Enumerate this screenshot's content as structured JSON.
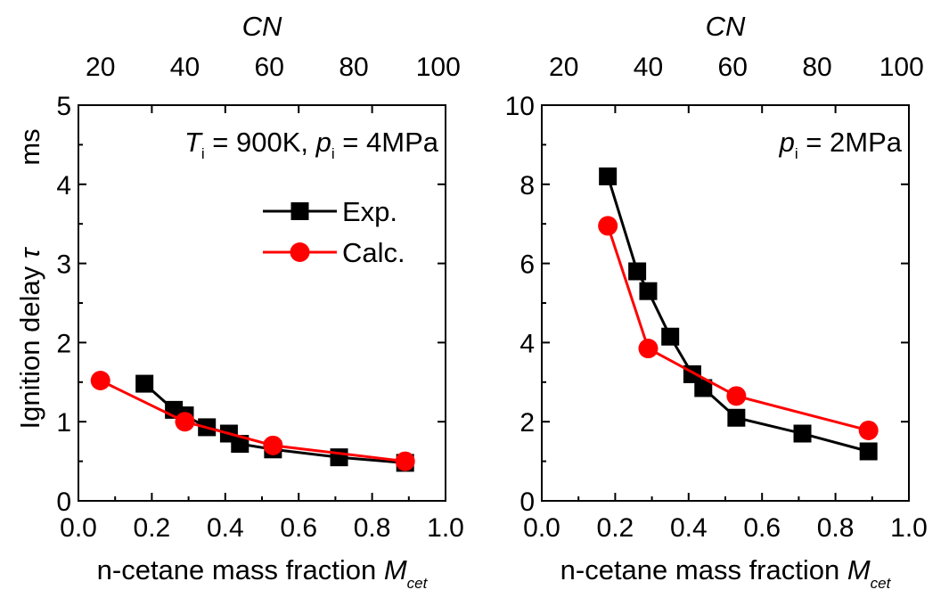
{
  "chart_data": [
    {
      "type": "line",
      "ylabel": "Ignition delay τ",
      "yunit": "ms",
      "xlabel": "n-cetane mass fraction M",
      "xlabel_sub": "cet",
      "top_axis_label": "CN",
      "xlim": [
        0.0,
        1.0
      ],
      "ylim": [
        0,
        5
      ],
      "x_ticks": [
        "0.0",
        "0.2",
        "0.4",
        "0.6",
        "0.8",
        "1.0"
      ],
      "y_ticks": [
        "0",
        "1",
        "2",
        "3",
        "4",
        "5"
      ],
      "top_ticks": [
        {
          "label": "20",
          "x": 0.06
        },
        {
          "label": "40",
          "x": 0.29
        },
        {
          "label": "60",
          "x": 0.52
        },
        {
          "label": "80",
          "x": 0.75
        },
        {
          "label": "100",
          "x": 0.98
        }
      ],
      "annotation": {
        "T": "T",
        "T_sub": "i",
        "T_text": " = 900K, ",
        "p": "p",
        "p_sub": "i",
        "p_text": " = 4MPa"
      },
      "legend": {
        "placement": "upper-right"
      },
      "series": [
        {
          "name": "Exp.",
          "color": "#000000",
          "marker": "square",
          "x": [
            0.18,
            0.26,
            0.29,
            0.35,
            0.41,
            0.44,
            0.53,
            0.71,
            0.89
          ],
          "y": [
            1.48,
            1.15,
            1.08,
            0.93,
            0.85,
            0.72,
            0.65,
            0.55,
            0.48
          ]
        },
        {
          "name": "Calc.",
          "color": "#ff0000",
          "marker": "circle",
          "x": [
            0.06,
            0.29,
            0.53,
            0.89
          ],
          "y": [
            1.52,
            1.0,
            0.7,
            0.5
          ]
        }
      ]
    },
    {
      "type": "line",
      "xlabel": "n-cetane mass fraction M",
      "xlabel_sub": "cet",
      "top_axis_label": "CN",
      "xlim": [
        0.0,
        1.0
      ],
      "ylim": [
        0,
        10
      ],
      "x_ticks": [
        "0.0",
        "0.2",
        "0.4",
        "0.6",
        "0.8",
        "1.0"
      ],
      "y_ticks": [
        "0",
        "2",
        "4",
        "6",
        "8",
        "10"
      ],
      "top_ticks": [
        {
          "label": "20",
          "x": 0.06
        },
        {
          "label": "40",
          "x": 0.29
        },
        {
          "label": "60",
          "x": 0.52
        },
        {
          "label": "80",
          "x": 0.75
        },
        {
          "label": "100",
          "x": 0.98
        }
      ],
      "annotation": {
        "p": "p",
        "p_sub": "i",
        "p_text": " = 2MPa"
      },
      "series": [
        {
          "color": "#000000",
          "marker": "square",
          "x": [
            0.18,
            0.26,
            0.29,
            0.35,
            0.41,
            0.44,
            0.53,
            0.71,
            0.89
          ],
          "y": [
            8.2,
            5.8,
            5.3,
            4.15,
            3.2,
            2.85,
            2.1,
            1.7,
            1.25
          ]
        },
        {
          "color": "#ff0000",
          "marker": "circle",
          "x": [
            0.18,
            0.29,
            0.53,
            0.89
          ],
          "y": [
            6.95,
            3.85,
            2.65,
            1.78
          ]
        }
      ]
    }
  ]
}
